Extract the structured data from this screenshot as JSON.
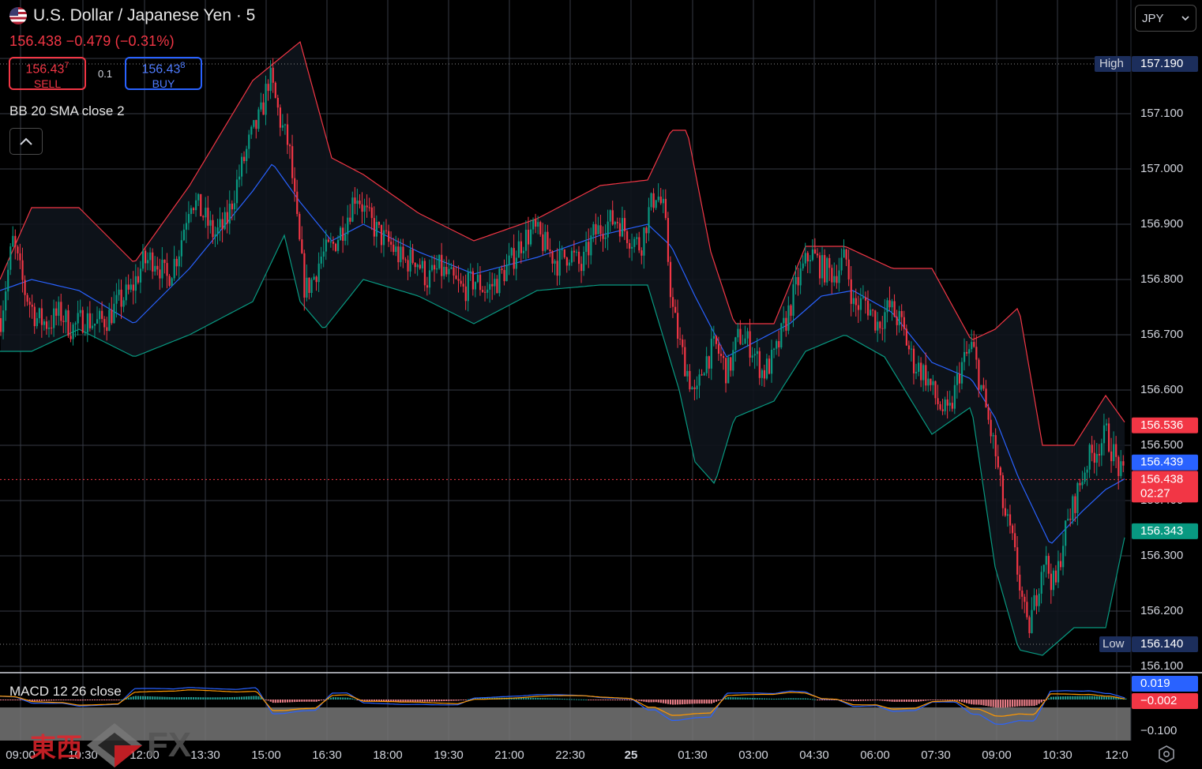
{
  "symbol": {
    "title": "U.S. Dollar / Japanese Yen · 5",
    "last_price": "156.438",
    "change": "−0.479",
    "change_pct": "(−0.31%)",
    "flag_icon": "us-flag-icon"
  },
  "trade_panel": {
    "sell_price": "156.437",
    "sell_price_main": "156.43",
    "sell_price_small": "7",
    "sell_label": "SELL",
    "buy_price": "156.438",
    "buy_price_main": "156.43",
    "buy_price_small": "8",
    "buy_label": "BUY",
    "spread": "0.1"
  },
  "indicators": {
    "bb_label": "BB 20 SMA close 2",
    "macd_label": "MACD 12 26 close"
  },
  "currency_select": {
    "value": "JPY"
  },
  "watermark": {
    "kanji": "東西",
    "fx": "FX"
  },
  "price_scale": {
    "ticks": [
      "157.100",
      "157.000",
      "156.900",
      "156.800",
      "156.700",
      "156.600",
      "156.500",
      "156.400",
      "156.300",
      "156.200",
      "156.100"
    ],
    "high_label": "High",
    "high_value": "157.190",
    "low_label": "Low",
    "low_value": "156.140",
    "bb_upper_badge": "156.536",
    "bb_basis_badge": "156.439",
    "last_badge": "156.438",
    "countdown": "02:27",
    "bb_lower_badge": "156.343"
  },
  "macd_scale": {
    "macd_badge": "0.019",
    "signal_badge": "−0.002",
    "tick": "−0.100"
  },
  "time_axis": {
    "labels": [
      "09:00",
      "10:30",
      "12:00",
      "13:30",
      "15:00",
      "16:30",
      "18:00",
      "19:30",
      "21:00",
      "22:30",
      "25",
      "01:30",
      "03:00",
      "04:30",
      "06:00",
      "07:30",
      "09:00",
      "10:30",
      "12:0"
    ]
  },
  "colors": {
    "background": "#000000",
    "grid": "#363a45",
    "up": "#089981",
    "down": "#f23645",
    "bb_upper": "#f23645",
    "bb_basis": "#2962ff",
    "bb_lower": "#089981",
    "macd_line": "#2962ff",
    "signal_line": "#ff9800",
    "badge_blue": "#2962ff",
    "badge_navy": "#1c2e5c"
  },
  "chart_data": {
    "type": "candlestick",
    "title": "U.S. Dollar / Japanese Yen · 5",
    "ylim": [
      156.08,
      157.23
    ],
    "high": 157.19,
    "low": 156.14,
    "last": 156.438,
    "grid": true,
    "x_tick_labels": [
      "09:00",
      "10:30",
      "12:00",
      "13:30",
      "15:00",
      "16:30",
      "18:00",
      "19:30",
      "21:00",
      "22:30",
      "25",
      "01:30",
      "03:00",
      "04:30",
      "06:00",
      "07:30",
      "09:00",
      "10:30",
      "12:0"
    ],
    "close_path": [
      [
        0,
        156.73
      ],
      [
        15,
        156.87
      ],
      [
        30,
        156.78
      ],
      [
        45,
        156.73
      ],
      [
        60,
        156.72
      ],
      [
        75,
        156.74
      ],
      [
        90,
        156.71
      ],
      [
        105,
        156.73
      ],
      [
        120,
        156.72
      ],
      [
        135,
        156.73
      ],
      [
        150,
        156.76
      ],
      [
        165,
        156.78
      ],
      [
        180,
        156.83
      ],
      [
        195,
        156.84
      ],
      [
        210,
        156.8
      ],
      [
        225,
        156.85
      ],
      [
        240,
        156.95
      ],
      [
        255,
        156.92
      ],
      [
        270,
        156.88
      ],
      [
        285,
        156.9
      ],
      [
        300,
        156.98
      ],
      [
        315,
        157.05
      ],
      [
        330,
        157.1
      ],
      [
        340,
        157.17
      ],
      [
        355,
        157.08
      ],
      [
        365,
        157.04
      ],
      [
        375,
        156.9
      ],
      [
        385,
        156.78
      ],
      [
        395,
        156.8
      ],
      [
        405,
        156.84
      ],
      [
        420,
        156.86
      ],
      [
        435,
        156.9
      ],
      [
        450,
        156.96
      ],
      [
        465,
        156.91
      ],
      [
        480,
        156.88
      ],
      [
        495,
        156.86
      ],
      [
        510,
        156.83
      ],
      [
        525,
        156.84
      ],
      [
        540,
        156.8
      ],
      [
        555,
        156.82
      ],
      [
        570,
        156.8
      ],
      [
        585,
        156.78
      ],
      [
        600,
        156.8
      ],
      [
        615,
        156.78
      ],
      [
        630,
        156.8
      ],
      [
        645,
        156.83
      ],
      [
        660,
        156.87
      ],
      [
        675,
        156.89
      ],
      [
        690,
        156.86
      ],
      [
        705,
        156.83
      ],
      [
        720,
        156.85
      ],
      [
        735,
        156.82
      ],
      [
        750,
        156.88
      ],
      [
        765,
        156.9
      ],
      [
        780,
        156.91
      ],
      [
        795,
        156.88
      ],
      [
        810,
        156.86
      ],
      [
        820,
        156.92
      ],
      [
        830,
        156.96
      ],
      [
        840,
        156.92
      ],
      [
        850,
        156.75
      ],
      [
        860,
        156.68
      ],
      [
        870,
        156.63
      ],
      [
        880,
        156.58
      ],
      [
        890,
        156.65
      ],
      [
        905,
        156.68
      ],
      [
        920,
        156.63
      ],
      [
        935,
        156.7
      ],
      [
        950,
        156.68
      ],
      [
        965,
        156.63
      ],
      [
        980,
        156.66
      ],
      [
        995,
        156.73
      ],
      [
        1010,
        156.8
      ],
      [
        1025,
        156.85
      ],
      [
        1040,
        156.82
      ],
      [
        1055,
        156.81
      ],
      [
        1070,
        156.84
      ],
      [
        1080,
        156.75
      ],
      [
        1095,
        156.76
      ],
      [
        1110,
        156.72
      ],
      [
        1125,
        156.75
      ],
      [
        1140,
        156.72
      ],
      [
        1155,
        156.65
      ],
      [
        1170,
        156.63
      ],
      [
        1185,
        156.58
      ],
      [
        1200,
        156.55
      ],
      [
        1215,
        156.64
      ],
      [
        1230,
        156.68
      ],
      [
        1245,
        156.58
      ],
      [
        1260,
        156.48
      ],
      [
        1270,
        156.38
      ],
      [
        1280,
        156.33
      ],
      [
        1290,
        156.25
      ],
      [
        1300,
        156.16
      ],
      [
        1310,
        156.22
      ],
      [
        1320,
        156.3
      ],
      [
        1335,
        156.24
      ],
      [
        1345,
        156.33
      ],
      [
        1360,
        156.4
      ],
      [
        1375,
        156.47
      ],
      [
        1390,
        156.5
      ],
      [
        1400,
        156.52
      ],
      [
        1410,
        156.48
      ],
      [
        1420,
        156.44
      ]
    ],
    "series": [
      {
        "name": "BB 20 SMA close 2 (upper)",
        "last": 156.536,
        "values_x": [
          0,
          40,
          100,
          170,
          240,
          320,
          380,
          420,
          460,
          530,
          600,
          680,
          760,
          820,
          850,
          870,
          900,
          930,
          980,
          1020,
          1070,
          1130,
          1180,
          1230,
          1260,
          1290,
          1320,
          1360,
          1400,
          1425
        ],
        "values": [
          156.8,
          156.93,
          156.93,
          156.83,
          156.97,
          157.16,
          157.23,
          157.02,
          156.99,
          156.92,
          156.87,
          156.91,
          156.97,
          156.98,
          157.07,
          157.07,
          156.85,
          156.72,
          156.72,
          156.86,
          156.86,
          156.82,
          156.82,
          156.69,
          156.71,
          156.75,
          156.5,
          156.5,
          156.59,
          156.54
        ]
      },
      {
        "name": "BB 20 SMA close 2 (basis)",
        "last": 156.439,
        "values_x": [
          0,
          40,
          100,
          170,
          240,
          320,
          345,
          380,
          420,
          460,
          530,
          600,
          680,
          760,
          820,
          850,
          880,
          920,
          960,
          1000,
          1040,
          1080,
          1130,
          1180,
          1230,
          1260,
          1290,
          1330,
          1370,
          1400,
          1425
        ],
        "values": [
          156.78,
          156.8,
          156.78,
          156.72,
          156.82,
          156.96,
          157.01,
          156.94,
          156.87,
          156.9,
          156.85,
          156.81,
          156.84,
          156.88,
          156.9,
          156.86,
          156.77,
          156.66,
          156.69,
          156.72,
          156.77,
          156.78,
          156.74,
          156.65,
          156.62,
          156.55,
          156.44,
          156.32,
          156.38,
          156.42,
          156.44
        ]
      },
      {
        "name": "BB 20 SMA close 2 (lower)",
        "last": 156.343,
        "values_x": [
          0,
          40,
          100,
          170,
          240,
          320,
          360,
          380,
          410,
          460,
          530,
          600,
          680,
          760,
          820,
          860,
          880,
          905,
          930,
          980,
          1020,
          1070,
          1120,
          1180,
          1230,
          1260,
          1290,
          1320,
          1360,
          1400,
          1425
        ],
        "values": [
          156.67,
          156.67,
          156.71,
          156.66,
          156.7,
          156.76,
          156.88,
          156.76,
          156.71,
          156.8,
          156.77,
          156.72,
          156.78,
          156.79,
          156.79,
          156.6,
          156.47,
          156.43,
          156.55,
          156.58,
          156.67,
          156.7,
          156.66,
          156.52,
          156.57,
          156.28,
          156.13,
          156.12,
          156.17,
          156.17,
          156.34
        ]
      }
    ],
    "macd": {
      "label": "MACD 12 26 close",
      "macd_last": 0.019,
      "signal_last": -0.002,
      "tick": -0.1
    }
  }
}
